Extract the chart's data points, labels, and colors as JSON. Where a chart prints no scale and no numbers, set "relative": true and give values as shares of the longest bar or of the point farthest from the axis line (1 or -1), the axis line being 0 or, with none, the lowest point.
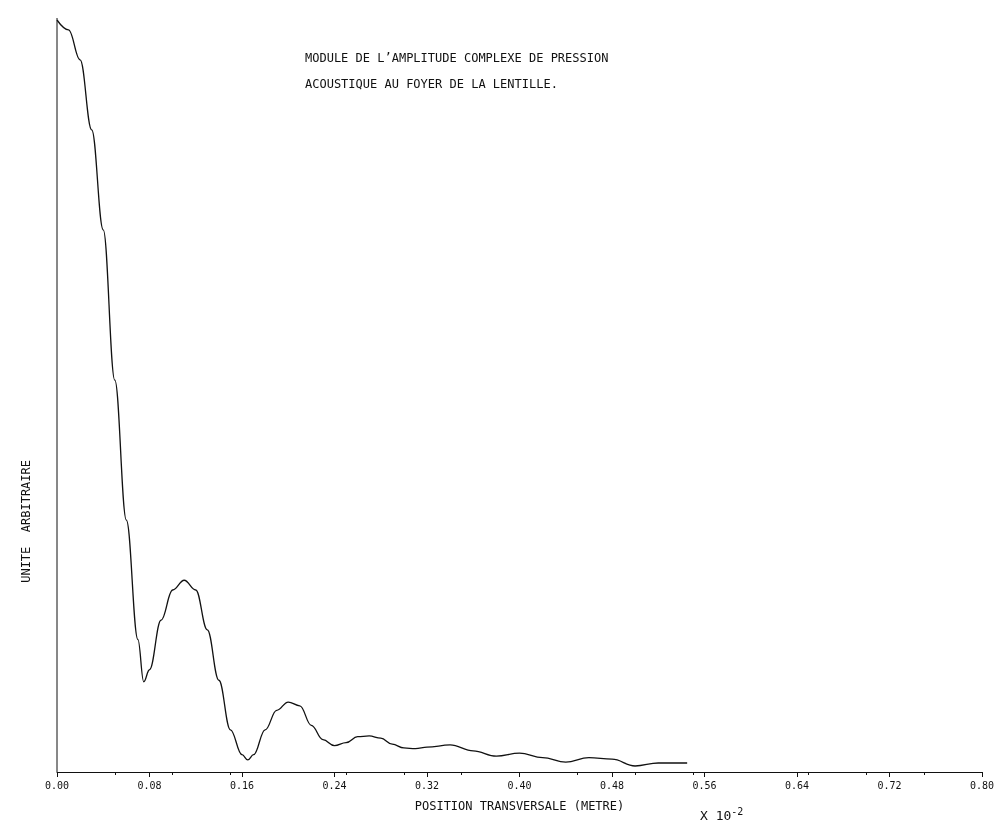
{
  "chart_data": {
    "type": "line",
    "relative": true,
    "title": "MODULE DE L’AMPLITUDE COMPLEXE DE PRESSION ACOUSTIQUE AU FOYER DE LA LENTILLE.",
    "xlabel": "POSITION TRANSVERSALE (METRE)",
    "ylabel": "UNITE  ARBITRAIRE",
    "annotations": [
      "X 10$^{-2}$"
    ],
    "xlim": [
      0,
      0.8
    ],
    "xticks": [
      {
        "value": 0,
        "label": "0.00"
      },
      {
        "value": 0.08,
        "label": "0.08"
      },
      {
        "value": 0.16,
        "label": "0.16"
      },
      {
        "value": 0.24,
        "label": "0.24"
      },
      {
        "value": 0.32,
        "label": "0.32"
      },
      {
        "value": 0.4,
        "label": "0.40"
      },
      {
        "value": 0.48,
        "label": "0.48"
      },
      {
        "value": 0.56,
        "label": "0.56"
      },
      {
        "value": 0.64,
        "label": "0.64"
      },
      {
        "value": 0.72,
        "label": "0.72"
      },
      {
        "value": 0.8,
        "label": "0.80"
      }
    ],
    "grid": false,
    "marker": "none",
    "line_style": "solid",
    "tick_labels": "x",
    "series": [
      {
        "color": "#111111",
        "x": [
          0,
          0.01,
          0.02,
          0.03,
          0.04,
          0.05,
          0.06,
          0.07,
          0.075,
          0.08,
          0.09,
          0.1,
          0.11,
          0.12,
          0.13,
          0.14,
          0.15,
          0.16,
          0.165,
          0.17,
          0.18,
          0.19,
          0.2,
          0.21,
          0.22,
          0.23,
          0.24,
          0.25,
          0.26,
          0.27,
          0.28,
          0.29,
          0.3,
          0.31,
          0.32,
          0.34,
          0.36,
          0.38,
          0.4,
          0.42,
          0.44,
          0.46,
          0.48,
          0.5,
          0.52,
          0.545
        ],
        "values": [
          1,
          0.987,
          0.947,
          0.854,
          0.721,
          0.521,
          0.335,
          0.176,
          0.12,
          0.136,
          0.202,
          0.242,
          0.255,
          0.242,
          0.189,
          0.122,
          0.056,
          0.023,
          0.016,
          0.023,
          0.056,
          0.082,
          0.093,
          0.088,
          0.062,
          0.043,
          0.035,
          0.039,
          0.047,
          0.048,
          0.045,
          0.037,
          0.032,
          0.031,
          0.033,
          0.036,
          0.028,
          0.021,
          0.025,
          0.019,
          0.013,
          0.019,
          0.017,
          0.008,
          0.012,
          0.012
        ]
      }
    ]
  }
}
